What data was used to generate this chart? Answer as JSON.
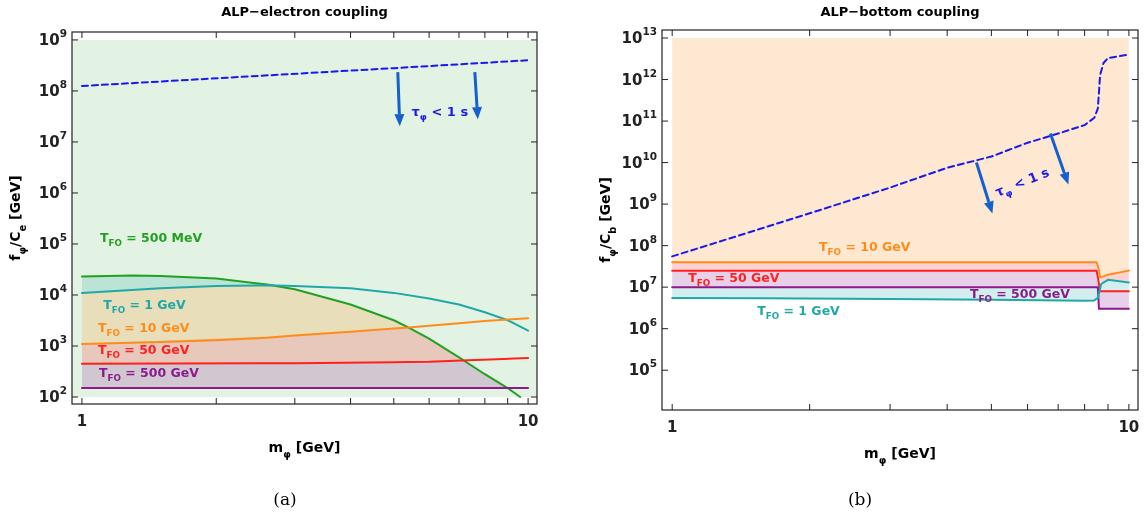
{
  "chart_data": [
    {
      "type": "line",
      "title": "ALP−electron coupling",
      "xlabel": "m$_{φ}$ [GeV]",
      "ylabel": "f$_{φ}$/C$_{e}$ [GeV]",
      "log": "xy",
      "legend": false,
      "xlim": [
        0.95,
        10.47
      ],
      "ylim": [
        73,
        1430000000.0
      ],
      "xticks": [
        {
          "value": 1,
          "label": "1"
        },
        {
          "value": 2,
          "label": null
        },
        {
          "value": 3,
          "label": null
        },
        {
          "value": 4,
          "label": null
        },
        {
          "value": 5,
          "label": null
        },
        {
          "value": 6,
          "label": null
        },
        {
          "value": 7,
          "label": null
        },
        {
          "value": 8,
          "label": null
        },
        {
          "value": 9,
          "label": null
        },
        {
          "value": 10,
          "label": "10"
        }
      ],
      "yticks": [
        {
          "value": 100,
          "label": "10$^{2}$"
        },
        {
          "value": 1000,
          "label": "10$^{3}$"
        },
        {
          "value": 10000,
          "label": "10$^{4}$"
        },
        {
          "value": 100000,
          "label": "10$^{5}$"
        },
        {
          "value": 1000000,
          "label": "10$^{6}$"
        },
        {
          "value": 10000000,
          "label": "10$^{7}$"
        },
        {
          "value": 100000000,
          "label": "10$^{8}$"
        },
        {
          "value": 1000000000,
          "label": "10$^{9}$"
        }
      ],
      "bands": [
        {
          "axis": "y",
          "from": 100,
          "to": 1000000000,
          "color": "#e3f3e3"
        }
      ],
      "annotations": [
        {
          "text": "τ$_{φ}$ < 1 s",
          "x": 5,
          "y": 280000000
        },
        "(a)"
      ],
      "series": [
        {
          "name": "T$_{FO}$ = 500 MeV",
          "color": "#22a022",
          "x": [
            1,
            1.3,
            1.5,
            2,
            2.6,
            3,
            4,
            5,
            5.4,
            6,
            7,
            8,
            9,
            9.6
          ],
          "values": [
            23000,
            24000,
            23500,
            21000,
            16000,
            13000,
            6500,
            3200,
            2300,
            1400,
            600,
            280,
            150,
            100
          ]
        },
        {
          "name": "T$_{FO}$ = 1 GeV",
          "color": "#20a8a8",
          "x": [
            1,
            1.5,
            2,
            2.6,
            3,
            4,
            5,
            6,
            7,
            8,
            9,
            10
          ],
          "values": [
            11000,
            13500,
            15000,
            15500,
            15000,
            13500,
            11000,
            8500,
            6500,
            4600,
            3200,
            2000
          ],
          "lower": [
            11000,
            13500,
            15000,
            15500,
            null,
            null,
            null,
            null,
            null,
            null,
            null,
            null
          ],
          "upper": [
            23000,
            23500,
            21000,
            16000,
            null,
            null,
            null,
            null,
            null,
            null,
            null,
            null
          ]
        },
        {
          "name": "T$_{FO}$ = 10 GeV",
          "color": "#ff8c1a",
          "x": [
            1,
            1.5,
            2,
            2.6,
            3,
            4,
            5,
            5.4,
            6,
            7,
            8,
            9,
            10
          ],
          "values": [
            1100,
            1200,
            1300,
            1450,
            1600,
            1900,
            2200,
            2300,
            2500,
            2800,
            3100,
            3300,
            3500
          ],
          "lower": [
            1100,
            1200,
            1300,
            1450,
            1600,
            1900,
            2200,
            2300,
            null,
            null,
            null,
            null,
            null
          ],
          "upper": [
            11000,
            13500,
            15000,
            15500,
            13000,
            6500,
            3200,
            2300,
            null,
            null,
            null,
            null,
            null
          ]
        },
        {
          "name": "T$_{FO}$ = 50 GeV",
          "color": "#ff2020",
          "x": [
            1,
            3,
            5,
            5.4,
            6,
            7.1,
            10
          ],
          "values": [
            450,
            460,
            480,
            485,
            490,
            520,
            580
          ],
          "lower": [
            450,
            460,
            480,
            485,
            490,
            520,
            null
          ],
          "upper": [
            1100,
            1600,
            2200,
            2300,
            1400,
            520,
            null
          ]
        },
        {
          "name": "T$_{FO}$ = 500 GeV",
          "color": "#8b1a8b",
          "x": [
            1,
            3,
            5,
            5.4,
            6,
            7.1,
            8,
            9,
            10
          ],
          "values": [
            150,
            150,
            150,
            150,
            150,
            150,
            150,
            150,
            150
          ],
          "lower": [
            150,
            150,
            150,
            150,
            150,
            150,
            150,
            150,
            null
          ],
          "upper": [
            450,
            460,
            480,
            485,
            490,
            520,
            280,
            150,
            null
          ]
        },
        {
          "color": "#1a1aee",
          "line_style": "dashed",
          "x": [
            1,
            5,
            10
          ],
          "values": [
            125000000,
            280000000,
            400000000
          ]
        }
      ]
    },
    {
      "type": "line",
      "title": "ALP−bottom coupling",
      "xlabel": "m$_{φ}$ [GeV]",
      "ylabel": "f$_{φ}$/C$_{b}$ [GeV]",
      "log": "xy",
      "legend": false,
      "xlim": [
        0.95,
        10.47
      ],
      "ylim": [
        11000,
        15600000000000.0
      ],
      "xticks": [
        {
          "value": 1,
          "label": "1"
        },
        {
          "value": 2,
          "label": null
        },
        {
          "value": 3,
          "label": null
        },
        {
          "value": 4,
          "label": null
        },
        {
          "value": 5,
          "label": null
        },
        {
          "value": 6,
          "label": null
        },
        {
          "value": 7,
          "label": null
        },
        {
          "value": 8,
          "label": null
        },
        {
          "value": 9,
          "label": null
        },
        {
          "value": 10,
          "label": "10"
        }
      ],
      "yticks": [
        {
          "value": 100000,
          "label": "10$^{5}$"
        },
        {
          "value": 1000000,
          "label": "10$^{6}$"
        },
        {
          "value": 10000000,
          "label": "10$^{7}$"
        },
        {
          "value": 100000000,
          "label": "10$^{8}$"
        },
        {
          "value": 1000000000,
          "label": "10$^{9}$"
        },
        {
          "value": 10000000000,
          "label": "10$^{10}$"
        },
        {
          "value": 100000000000,
          "label": "10$^{11}$"
        },
        {
          "value": 1000000000000,
          "label": "10$^{12}$"
        },
        {
          "value": 10000000000000,
          "label": "10$^{13}$"
        }
      ],
      "annotations": [
        {
          "text": "τ$_{φ}$ < 1 s",
          "x": 5,
          "y": 14000000000
        },
        "(b)"
      ],
      "series": [
        {
          "name": "T$_{FO}$ = 10 GeV",
          "color": "#ff8c1a",
          "x": [
            1,
            5,
            8.5,
            8.6,
            8.65,
            9,
            10
          ],
          "values": [
            40000000,
            40000000,
            40000000,
            25000000,
            17000000,
            20000000,
            25000000
          ],
          "lower": [
            40000000,
            40000000,
            40000000,
            25000000,
            17000000,
            20000000,
            25000000
          ],
          "upper": [
            10000000000000,
            10000000000000,
            10000000000000,
            10000000000000,
            10000000000000,
            10000000000000,
            10000000000000
          ]
        },
        {
          "name": "T$_{FO}$ = 50 GeV",
          "color": "#ff2020",
          "x": [
            1,
            5,
            8.5,
            8.6,
            8.65,
            8.7,
            9,
            10
          ],
          "values": [
            25000000,
            25000000,
            25000000,
            12000000,
            8000000,
            8000000,
            8000000,
            8000000
          ],
          "lower": [
            25000000,
            25000000,
            25000000,
            null,
            null,
            12000000,
            15000000,
            13000000
          ],
          "upper": [
            40000000,
            40000000,
            40000000,
            null,
            null,
            18000000,
            20000000,
            25000000
          ]
        },
        {
          "name": "T$_{FO}$ = 500 GeV",
          "color": "#8b1a8b",
          "x": [
            1,
            8.55,
            8.6,
            10
          ],
          "values": [
            10000000,
            10000000,
            3000000,
            3000000
          ],
          "lower": [
            10000000,
            10000000,
            3000000,
            3000000
          ],
          "upper": [
            25000000,
            25000000,
            8000000,
            8000000
          ]
        },
        {
          "name": "T$_{FO}$ = 1 GeV",
          "color": "#20a8a8",
          "x": [
            1,
            3,
            5,
            8,
            8.4,
            8.55,
            8.7,
            9,
            10
          ],
          "values": [
            5500000,
            5200000,
            5000000,
            4700000,
            4800000,
            5500000,
            12000000,
            15000000,
            13000000
          ],
          "lower": [
            5500000,
            5200000,
            5000000,
            4700000,
            4800000,
            5500000,
            8000000,
            8000000,
            8000000
          ],
          "upper": [
            10000000,
            10000000,
            10000000,
            10000000,
            10000000,
            10000000,
            12000000,
            15000000,
            13000000
          ]
        },
        {
          "color": "#1a1aee",
          "line_style": "dashed",
          "x": [
            1,
            2,
            3,
            4,
            5,
            6,
            7,
            8,
            8.4,
            8.55,
            8.6,
            8.65,
            8.8,
            9,
            10
          ],
          "values": [
            55000000,
            600000000,
            2500000000,
            7500000000,
            14000000000,
            30000000000,
            50000000000,
            80000000000,
            120000000000,
            200000000000,
            500000000000,
            1300000000000,
            2500000000000,
            3300000000000,
            4000000000000
          ]
        }
      ]
    }
  ]
}
